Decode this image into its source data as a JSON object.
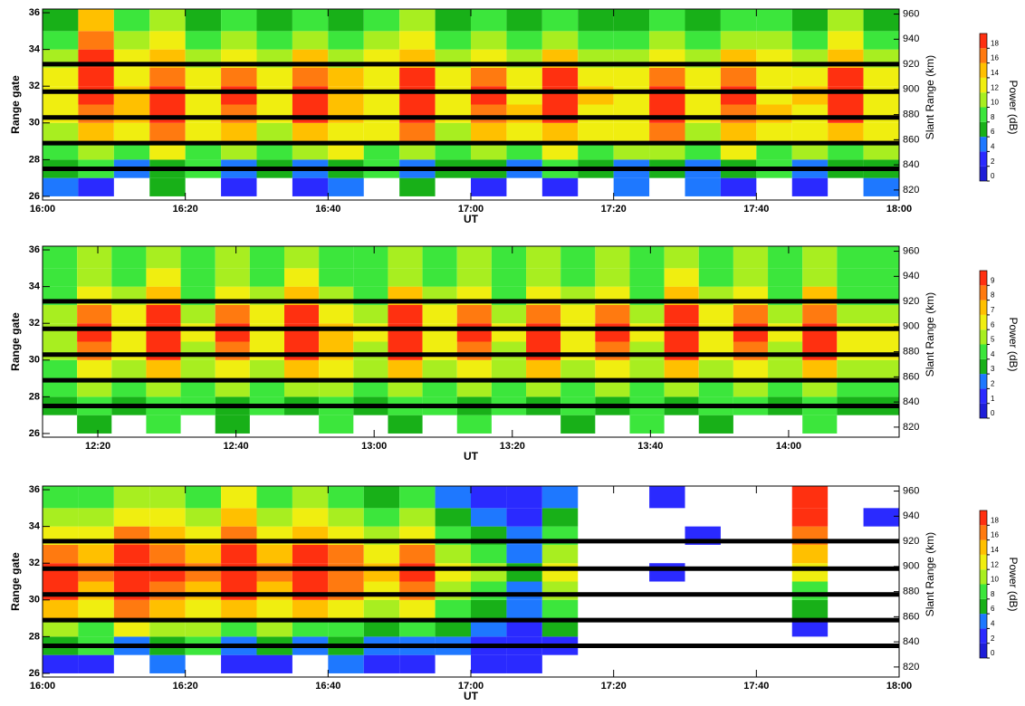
{
  "chart_data": [
    {
      "type": "heatmap",
      "xlabel": "UT",
      "ylabel": "Range gate",
      "y2label": "Slant Range (km)",
      "x": [
        "16:00",
        "16:05",
        "16:10",
        "16:15",
        "16:20",
        "16:25",
        "16:30",
        "16:35",
        "16:40",
        "16:45",
        "16:50",
        "16:55",
        "17:00",
        "17:05",
        "17:10",
        "17:15",
        "17:20",
        "17:25",
        "17:30",
        "17:35",
        "17:40",
        "17:45",
        "17:50",
        "17:55"
      ],
      "xlim": [
        "16:00",
        "18:00"
      ],
      "xticks": [
        "16:00",
        "16:20",
        "16:40",
        "17:00",
        "17:20",
        "17:40",
        "18:00"
      ],
      "y": [
        26,
        27,
        28,
        29,
        30,
        31,
        32,
        33,
        34,
        35
      ],
      "ylim": [
        25.8,
        36.2
      ],
      "yticks": [
        26,
        28,
        30,
        32,
        34,
        36
      ],
      "y2lim": [
        812,
        964
      ],
      "y2ticks": [
        820,
        840,
        860,
        880,
        900,
        920,
        940,
        960
      ],
      "markers": [
        27.5,
        28.9,
        30.3,
        31.7,
        33.2
      ],
      "z": [
        [
          4,
          2,
          null,
          6,
          null,
          3,
          null,
          2,
          4,
          null,
          6,
          null,
          3,
          null,
          2,
          null,
          5,
          null,
          4,
          2,
          null,
          3,
          null,
          4
        ],
        [
          6,
          8,
          4,
          6,
          8,
          5,
          7,
          4,
          6,
          8,
          5,
          7,
          6,
          4,
          8,
          6,
          5,
          7,
          4,
          6,
          8,
          5,
          7,
          6
        ],
        [
          8,
          10,
          8,
          12,
          9,
          11,
          8,
          10,
          12,
          9,
          11,
          8,
          10,
          9,
          12,
          8,
          11,
          10,
          9,
          12,
          8,
          10,
          9,
          11
        ],
        [
          10,
          14,
          12,
          16,
          12,
          14,
          11,
          15,
          13,
          12,
          16,
          11,
          14,
          12,
          15,
          13,
          12,
          16,
          11,
          14,
          13,
          12,
          15,
          12
        ],
        [
          12,
          16,
          14,
          18,
          13,
          17,
          12,
          18,
          14,
          13,
          18,
          12,
          17,
          14,
          18,
          13,
          12,
          18,
          13,
          17,
          14,
          12,
          18,
          13
        ],
        [
          12,
          18,
          14,
          18,
          12,
          18,
          13,
          18,
          14,
          12,
          18,
          13,
          18,
          12,
          18,
          14,
          12,
          18,
          13,
          18,
          12,
          14,
          18,
          12
        ],
        [
          12,
          18,
          13,
          17,
          12,
          16,
          12,
          17,
          14,
          12,
          18,
          12,
          16,
          13,
          18,
          12,
          12,
          17,
          12,
          16,
          13,
          12,
          18,
          12
        ],
        [
          10,
          18,
          12,
          14,
          10,
          12,
          11,
          14,
          10,
          12,
          14,
          10,
          12,
          11,
          14,
          10,
          11,
          12,
          10,
          14,
          12,
          10,
          14,
          11
        ],
        [
          8,
          16,
          10,
          12,
          8,
          10,
          9,
          11,
          8,
          10,
          12,
          8,
          10,
          9,
          11,
          8,
          9,
          10,
          8,
          11,
          10,
          8,
          12,
          9
        ],
        [
          6,
          14,
          8,
          10,
          6,
          9,
          7,
          8,
          6,
          8,
          10,
          6,
          8,
          7,
          9,
          6,
          7,
          8,
          6,
          9,
          8,
          6,
          10,
          7
        ]
      ],
      "colorbar": {
        "label": "Power (dB)",
        "lim": [
          0,
          20
        ],
        "ticks": [
          0,
          2,
          4,
          6,
          8,
          10,
          12,
          14,
          16,
          18
        ],
        "colors": [
          "#1e1ed8",
          "#2a2aff",
          "#1e78ff",
          "#18b018",
          "#3ce63c",
          "#a8ee20",
          "#f0ee10",
          "#ffc000",
          "#ff7a10",
          "#ff3010"
        ]
      }
    },
    {
      "type": "heatmap",
      "xlabel": "UT",
      "ylabel": "Range gate",
      "y2label": "Slant Range (km)",
      "x": [
        "12:12",
        "12:17",
        "12:22",
        "12:27",
        "12:32",
        "12:37",
        "12:42",
        "12:47",
        "12:52",
        "12:57",
        "13:02",
        "13:07",
        "13:12",
        "13:17",
        "13:22",
        "13:27",
        "13:32",
        "13:37",
        "13:42",
        "13:47",
        "13:52",
        "13:57",
        "14:02",
        "14:07"
      ],
      "xlim": [
        "12:12",
        "14:16"
      ],
      "xticks": [
        "12:20",
        "12:40",
        "13:00",
        "13:20",
        "13:40",
        "14:00"
      ],
      "y": [
        26,
        27,
        28,
        29,
        30,
        31,
        32,
        33,
        34,
        35
      ],
      "ylim": [
        25.8,
        36.2
      ],
      "yticks": [
        26,
        28,
        30,
        32,
        34,
        36
      ],
      "y2lim": [
        812,
        964
      ],
      "y2ticks": [
        820,
        840,
        860,
        880,
        900,
        920,
        940,
        960
      ],
      "markers": [
        27.5,
        28.9,
        30.3,
        31.7,
        33.2
      ],
      "z": [
        [
          null,
          3,
          null,
          4,
          null,
          3,
          null,
          null,
          4,
          null,
          3,
          null,
          4,
          null,
          null,
          3,
          null,
          4,
          null,
          3,
          null,
          null,
          4,
          null
        ],
        [
          3,
          4,
          3,
          4,
          4,
          3,
          4,
          3,
          4,
          3,
          4,
          4,
          3,
          4,
          3,
          4,
          3,
          4,
          3,
          4,
          4,
          3,
          4,
          3
        ],
        [
          4,
          5,
          4,
          5,
          4,
          5,
          4,
          5,
          5,
          4,
          5,
          4,
          5,
          4,
          5,
          4,
          5,
          4,
          5,
          4,
          5,
          4,
          5,
          4
        ],
        [
          4,
          6,
          5,
          7,
          5,
          6,
          5,
          7,
          6,
          5,
          7,
          5,
          6,
          5,
          7,
          5,
          6,
          5,
          7,
          5,
          6,
          5,
          7,
          5
        ],
        [
          5,
          8,
          6,
          9,
          5,
          8,
          6,
          9,
          7,
          5,
          9,
          6,
          8,
          5,
          9,
          6,
          8,
          5,
          9,
          6,
          8,
          5,
          9,
          6
        ],
        [
          5,
          9,
          6,
          9,
          6,
          9,
          6,
          9,
          7,
          6,
          9,
          6,
          9,
          6,
          9,
          6,
          9,
          6,
          9,
          6,
          9,
          6,
          9,
          6
        ],
        [
          5,
          8,
          6,
          9,
          5,
          8,
          6,
          9,
          6,
          5,
          9,
          6,
          8,
          5,
          8,
          6,
          8,
          5,
          9,
          6,
          8,
          5,
          8,
          5
        ],
        [
          4,
          6,
          5,
          7,
          4,
          6,
          5,
          7,
          5,
          4,
          7,
          5,
          6,
          4,
          6,
          5,
          6,
          4,
          7,
          5,
          6,
          4,
          7,
          4
        ],
        [
          4,
          5,
          4,
          6,
          4,
          5,
          4,
          6,
          4,
          4,
          5,
          4,
          5,
          4,
          5,
          4,
          5,
          4,
          6,
          4,
          5,
          4,
          5,
          4
        ],
        [
          4,
          5,
          4,
          5,
          4,
          5,
          4,
          5,
          4,
          4,
          5,
          4,
          5,
          4,
          5,
          4,
          5,
          4,
          5,
          4,
          5,
          4,
          5,
          4
        ]
      ],
      "colorbar": {
        "label": "Power (dB)",
        "lim": [
          0,
          10
        ],
        "ticks": [
          0,
          1,
          2,
          3,
          4,
          5,
          6,
          7,
          8,
          9
        ],
        "colors": [
          "#1e1ed8",
          "#2a2aff",
          "#1e78ff",
          "#18b018",
          "#3ce63c",
          "#a8ee20",
          "#f0ee10",
          "#ffc000",
          "#ff7a10",
          "#ff3010"
        ]
      }
    },
    {
      "type": "heatmap",
      "xlabel": "UT",
      "ylabel": "Range gate",
      "y2label": "Slant Range (km)",
      "x": [
        "16:00",
        "16:05",
        "16:10",
        "16:15",
        "16:20",
        "16:25",
        "16:30",
        "16:35",
        "16:40",
        "16:45",
        "16:50",
        "16:55",
        "17:00",
        "17:05",
        "17:10",
        "17:15",
        "17:20",
        "17:25",
        "17:30",
        "17:35",
        "17:40",
        "17:45",
        "17:50",
        "17:55"
      ],
      "xlim": [
        "16:00",
        "18:00"
      ],
      "xticks": [
        "16:00",
        "16:20",
        "16:40",
        "17:00",
        "17:20",
        "17:40",
        "18:00"
      ],
      "y": [
        26,
        27,
        28,
        29,
        30,
        31,
        32,
        33,
        34,
        35
      ],
      "ylim": [
        25.8,
        36.2
      ],
      "yticks": [
        26,
        28,
        30,
        32,
        34,
        36
      ],
      "y2lim": [
        812,
        964
      ],
      "y2ticks": [
        820,
        840,
        860,
        880,
        900,
        920,
        940,
        960
      ],
      "markers": [
        27.5,
        28.9,
        30.3,
        31.7,
        33.2
      ],
      "z": [
        [
          3,
          2,
          null,
          4,
          null,
          3,
          2,
          null,
          4,
          2,
          3,
          null,
          2,
          2,
          null,
          null,
          null,
          null,
          null,
          null,
          null,
          null,
          null,
          null
        ],
        [
          6,
          8,
          4,
          6,
          8,
          5,
          7,
          4,
          6,
          4,
          5,
          4,
          3,
          2,
          3,
          null,
          null,
          null,
          null,
          null,
          null,
          null,
          null,
          null
        ],
        [
          10,
          8,
          12,
          10,
          11,
          9,
          10,
          8,
          9,
          7,
          8,
          6,
          4,
          3,
          6,
          null,
          null,
          null,
          null,
          null,
          null,
          2,
          null,
          null
        ],
        [
          14,
          12,
          16,
          14,
          12,
          15,
          13,
          14,
          12,
          10,
          12,
          8,
          6,
          4,
          8,
          null,
          null,
          null,
          null,
          null,
          null,
          6,
          null,
          null
        ],
        [
          18,
          14,
          18,
          17,
          14,
          18,
          14,
          18,
          16,
          12,
          16,
          10,
          8,
          5,
          10,
          null,
          null,
          null,
          null,
          null,
          null,
          8,
          null,
          null
        ],
        [
          18,
          16,
          18,
          18,
          16,
          18,
          16,
          18,
          17,
          14,
          18,
          12,
          10,
          6,
          12,
          null,
          null,
          2,
          null,
          null,
          null,
          12,
          null,
          null
        ],
        [
          16,
          14,
          18,
          17,
          14,
          18,
          15,
          18,
          16,
          13,
          16,
          10,
          8,
          5,
          10,
          null,
          null,
          null,
          null,
          null,
          null,
          14,
          null,
          null
        ],
        [
          12,
          12,
          16,
          14,
          12,
          16,
          13,
          14,
          12,
          10,
          12,
          8,
          6,
          4,
          8,
          null,
          null,
          null,
          2,
          null,
          null,
          16,
          null,
          null
        ],
        [
          10,
          10,
          12,
          12,
          10,
          14,
          10,
          12,
          10,
          8,
          10,
          6,
          4,
          3,
          6,
          null,
          null,
          null,
          null,
          null,
          null,
          18,
          null,
          2
        ],
        [
          8,
          8,
          10,
          10,
          8,
          12,
          8,
          10,
          8,
          6,
          8,
          4,
          3,
          2,
          4,
          null,
          null,
          2,
          null,
          null,
          null,
          18,
          null,
          null
        ]
      ],
      "colorbar": {
        "label": "Power (dB)",
        "lim": [
          0,
          20
        ],
        "ticks": [
          0,
          2,
          4,
          6,
          8,
          10,
          12,
          14,
          16,
          18
        ],
        "colors": [
          "#1e1ed8",
          "#2a2aff",
          "#1e78ff",
          "#18b018",
          "#3ce63c",
          "#a8ee20",
          "#f0ee10",
          "#ffc000",
          "#ff7a10",
          "#ff3010"
        ]
      }
    }
  ]
}
